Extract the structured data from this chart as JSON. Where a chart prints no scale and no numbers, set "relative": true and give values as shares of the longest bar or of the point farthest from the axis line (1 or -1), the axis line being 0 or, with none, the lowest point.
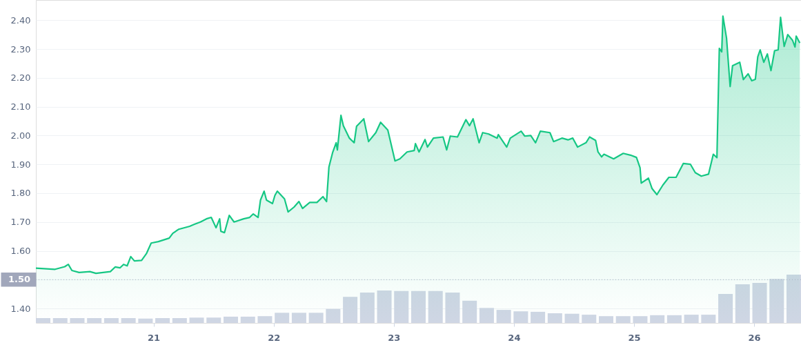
{
  "chart_data": [
    {
      "type": "area",
      "x": [
        20.02,
        20.18,
        20.26,
        20.29,
        20.32,
        20.38,
        20.47,
        20.52,
        20.64,
        20.68,
        20.72,
        20.75,
        20.78,
        20.81,
        20.84,
        20.9,
        20.94,
        20.98,
        21.04,
        21.13,
        21.16,
        21.21,
        21.3,
        21.34,
        21.39,
        21.44,
        21.48,
        21.52,
        21.55,
        21.56,
        21.59,
        21.63,
        21.67,
        21.75,
        21.8,
        21.83,
        21.87,
        21.89,
        21.92,
        21.94,
        21.99,
        22.01,
        22.03,
        22.09,
        22.12,
        22.17,
        22.21,
        22.24,
        22.3,
        22.36,
        22.41,
        22.44,
        22.46,
        22.49,
        22.52,
        22.53,
        22.56,
        22.58,
        22.63,
        22.67,
        22.69,
        22.75,
        22.79,
        22.85,
        22.89,
        22.95,
        23.01,
        23.05,
        23.11,
        23.17,
        23.18,
        23.21,
        23.26,
        23.28,
        23.33,
        23.41,
        23.44,
        23.47,
        23.53,
        23.6,
        23.63,
        23.66,
        23.71,
        23.74,
        23.79,
        23.86,
        23.87,
        23.94,
        23.97,
        24.06,
        24.09,
        24.14,
        24.18,
        24.22,
        24.3,
        24.33,
        24.4,
        24.45,
        24.49,
        24.53,
        24.6,
        24.63,
        24.68,
        24.7,
        24.73,
        24.75,
        24.83,
        24.91,
        24.97,
        25.02,
        25.05,
        25.06,
        25.12,
        25.15,
        25.19,
        25.24,
        25.29,
        25.35,
        25.41,
        25.47,
        25.51,
        25.56,
        25.62,
        25.66,
        25.69,
        25.71,
        25.73,
        25.74,
        25.77,
        25.8,
        25.82,
        25.88,
        25.91,
        25.95,
        25.98,
        26.01,
        26.03,
        26.05,
        26.08,
        26.11,
        26.14,
        26.17,
        26.2,
        26.22,
        26.25,
        26.28,
        26.32,
        26.34,
        26.35,
        26.38
      ],
      "series": [
        {
          "color": "#16c784",
          "values": [
            1.54,
            1.536,
            1.545,
            1.553,
            1.532,
            1.525,
            1.528,
            1.522,
            1.528,
            1.544,
            1.541,
            1.553,
            1.548,
            1.58,
            1.565,
            1.567,
            1.59,
            1.627,
            1.632,
            1.644,
            1.661,
            1.675,
            1.685,
            1.692,
            1.7,
            1.711,
            1.716,
            1.68,
            1.711,
            1.668,
            1.663,
            1.723,
            1.7,
            1.711,
            1.716,
            1.728,
            1.716,
            1.776,
            1.807,
            1.776,
            1.764,
            1.792,
            1.807,
            1.78,
            1.735,
            1.752,
            1.771,
            1.747,
            1.768,
            1.768,
            1.788,
            1.771,
            1.891,
            1.94,
            1.975,
            1.95,
            2.07,
            2.034,
            1.991,
            1.975,
            2.032,
            2.058,
            1.979,
            2.01,
            2.046,
            2.019,
            1.912,
            1.919,
            1.943,
            1.948,
            1.972,
            1.943,
            1.986,
            1.96,
            1.991,
            1.995,
            1.95,
            1.998,
            1.995,
            2.055,
            2.034,
            2.058,
            1.975,
            2.01,
            2.005,
            1.991,
            2.003,
            1.96,
            1.991,
            2.015,
            1.998,
            2.0,
            1.975,
            2.015,
            2.01,
            1.979,
            1.991,
            1.985,
            1.991,
            1.96,
            1.975,
            1.995,
            1.983,
            1.943,
            1.926,
            1.935,
            1.919,
            1.938,
            1.932,
            1.924,
            1.888,
            1.835,
            1.852,
            1.816,
            1.795,
            1.828,
            1.855,
            1.855,
            1.903,
            1.9,
            1.871,
            1.859,
            1.866,
            1.935,
            1.923,
            2.302,
            2.29,
            2.414,
            2.338,
            2.17,
            2.242,
            2.254,
            2.194,
            2.214,
            2.19,
            2.195,
            2.273,
            2.297,
            2.254,
            2.283,
            2.225,
            2.294,
            2.297,
            2.41,
            2.309,
            2.35,
            2.33,
            2.307,
            2.345,
            2.321
          ]
        }
      ],
      "xlim": [
        20.02,
        26.39
      ],
      "ylim": [
        1.35,
        2.47
      ],
      "xticks": [
        21,
        22,
        23,
        24,
        25,
        26
      ],
      "yticks": [
        {
          "value": 1.4,
          "label": "1.40"
        },
        {
          "value": 1.5,
          "label": null
        },
        {
          "value": 1.6,
          "label": "1.60"
        },
        {
          "value": 1.7,
          "label": "1.70"
        },
        {
          "value": 1.8,
          "label": "1.80"
        },
        {
          "value": 1.9,
          "label": "1.90"
        },
        {
          "value": 2.0,
          "label": "2.00"
        },
        {
          "value": 2.1,
          "label": "2.10"
        },
        {
          "value": 2.2,
          "label": "2.20"
        },
        {
          "value": 2.3,
          "label": "2.30"
        },
        {
          "value": 2.4,
          "label": "2.40"
        }
      ],
      "ref_lines": [
        {
          "axis": "y",
          "value": 1.5,
          "label": "1.50",
          "color": "#a6b0c3",
          "line_style": "dotted"
        }
      ],
      "grid": "y",
      "legend": false
    },
    {
      "type": "bar",
      "relative": true,
      "tick_labels": false,
      "categories": [
        null,
        null,
        null,
        null,
        null,
        null,
        null,
        null,
        null,
        null,
        null,
        null,
        null,
        null,
        null,
        null,
        null,
        null,
        null,
        null,
        null,
        null,
        null,
        null,
        null,
        null,
        null,
        null,
        null,
        null,
        null,
        null,
        null,
        null,
        null,
        null,
        null,
        null,
        null,
        null,
        null,
        null,
        null,
        null,
        null
      ],
      "series": [
        {
          "color": "#cfd6e4",
          "values": [
            0.1,
            0.1,
            0.1,
            0.1,
            0.1,
            0.1,
            0.09,
            0.1,
            0.1,
            0.11,
            0.11,
            0.13,
            0.13,
            0.14,
            0.21,
            0.21,
            0.21,
            0.29,
            0.54,
            0.63,
            0.67,
            0.66,
            0.66,
            0.66,
            0.63,
            0.46,
            0.31,
            0.27,
            0.24,
            0.23,
            0.2,
            0.19,
            0.17,
            0.14,
            0.14,
            0.14,
            0.16,
            0.16,
            0.17,
            0.17,
            0.6,
            0.8,
            0.83,
            0.91,
            1
          ]
        }
      ],
      "legend": false
    }
  ]
}
